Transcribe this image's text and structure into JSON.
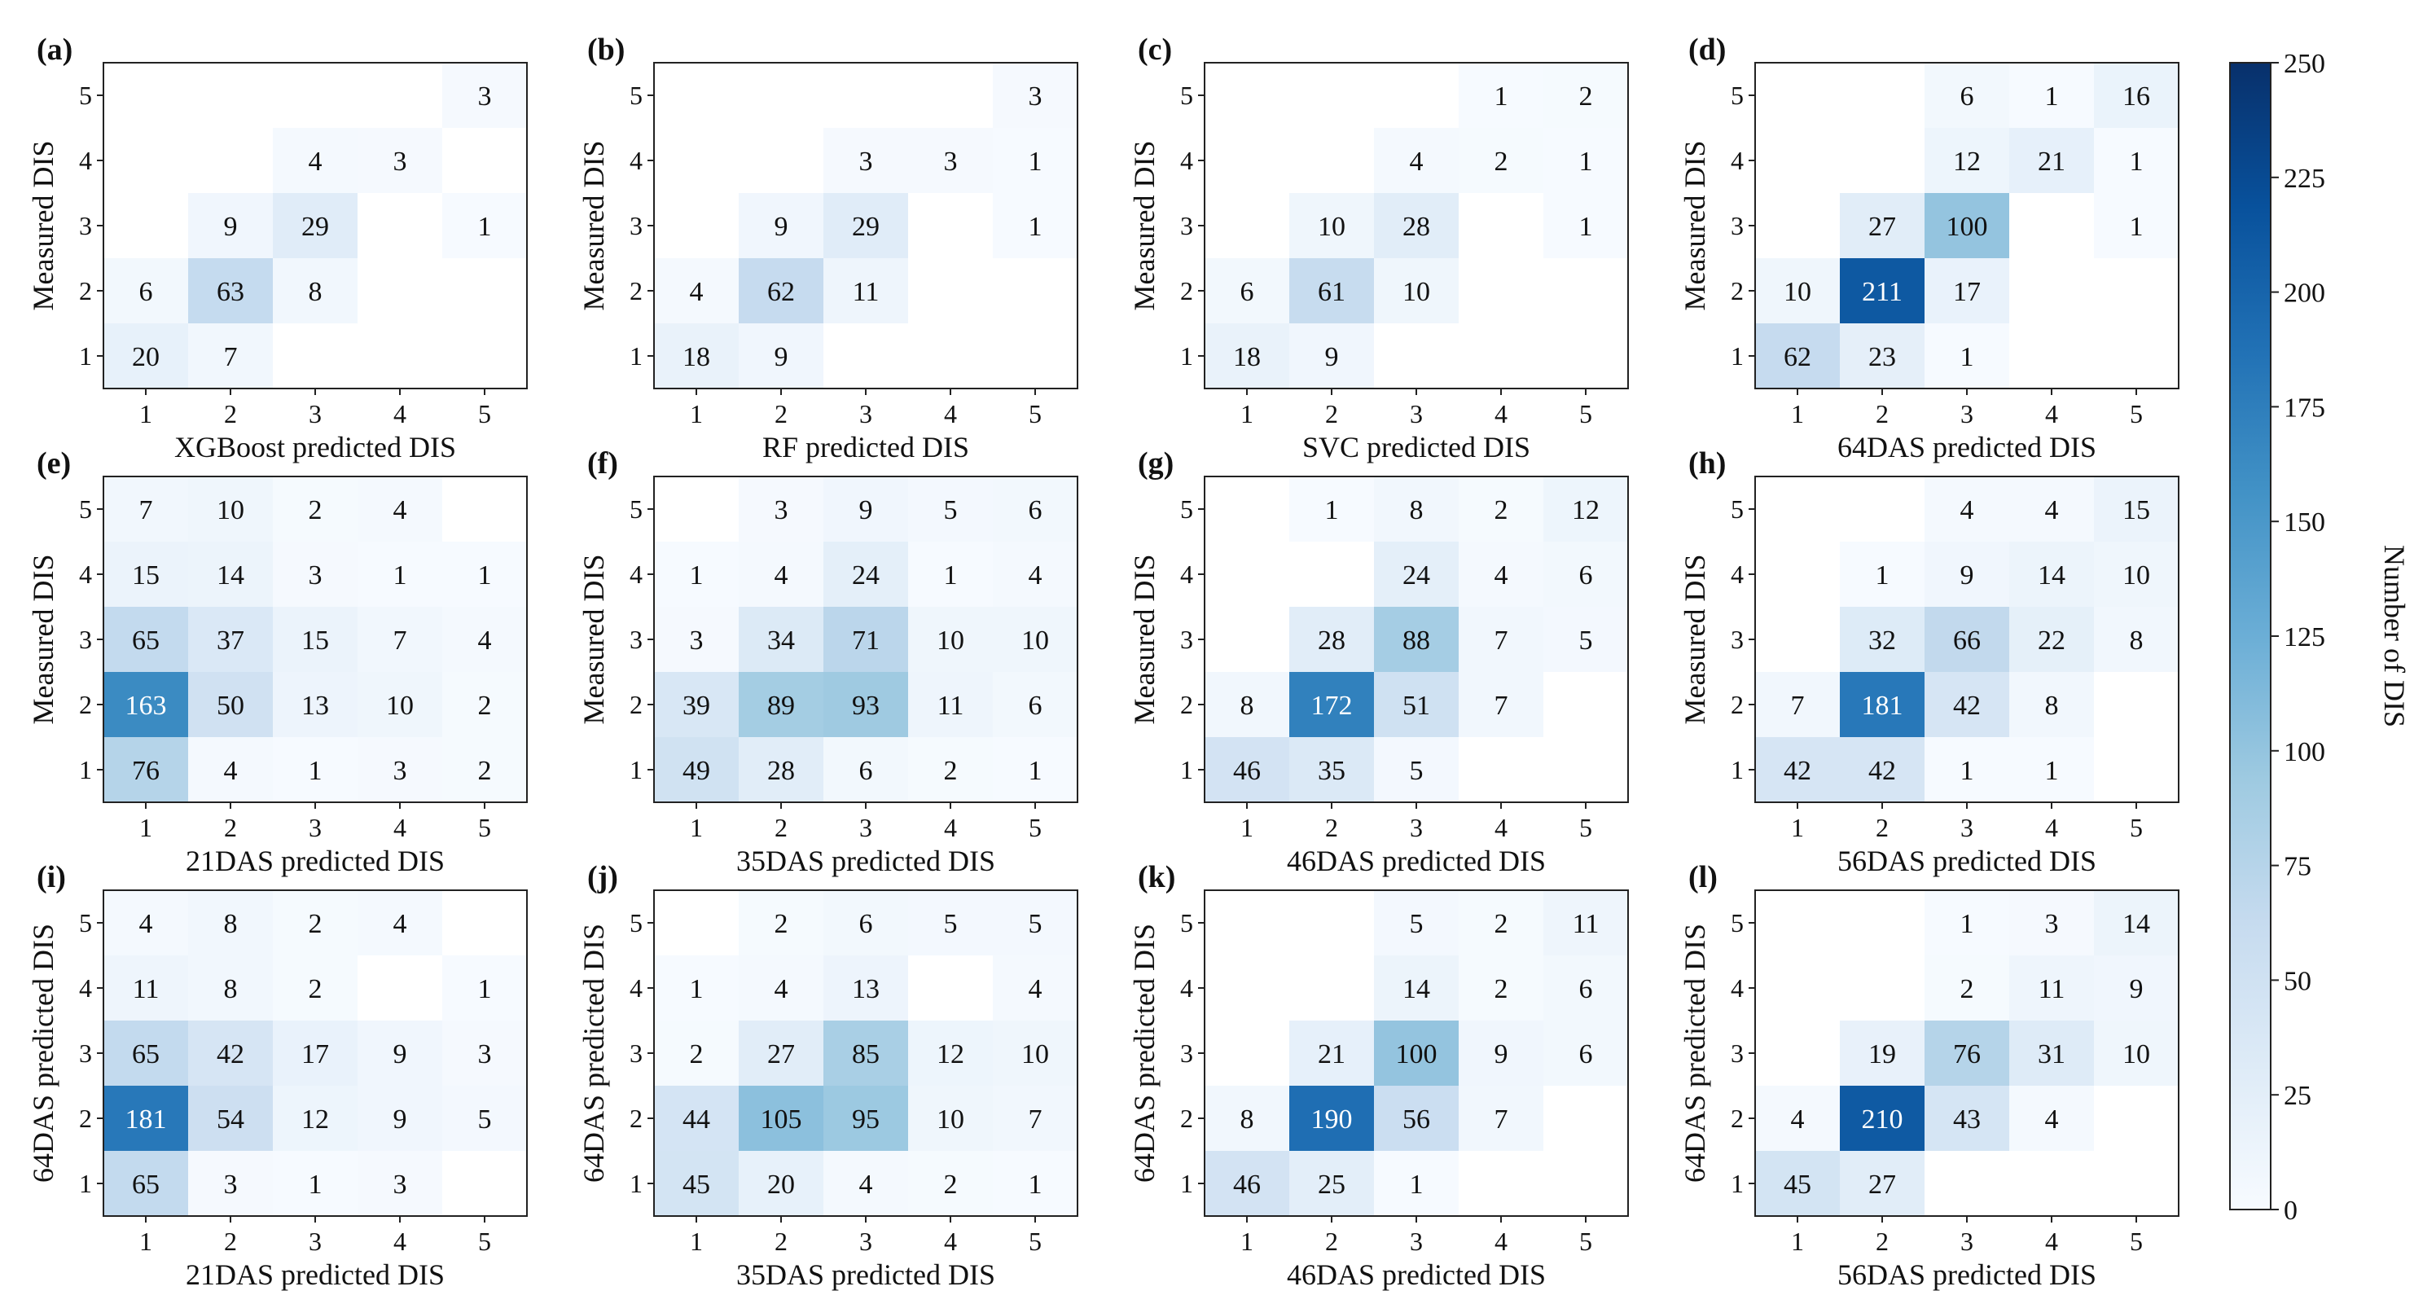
{
  "chart_data": {
    "type": "heatmap",
    "colormap": "Blues",
    "colorbar": {
      "label": "Number of DIS",
      "min": 0,
      "max": 250,
      "ticks": [
        "0",
        "25",
        "50",
        "75",
        "100",
        "125",
        "150",
        "175",
        "200",
        "225",
        "250"
      ]
    },
    "panels": [
      {
        "letter": "(a)",
        "xlabel": "XGBoost predicted DIS",
        "ylabel": "Measured DIS",
        "x_ticks": [
          "1",
          "2",
          "3",
          "4",
          "5"
        ],
        "y_ticks": [
          "5",
          "4",
          "3",
          "2",
          "1"
        ],
        "matrix": [
          [
            null,
            null,
            null,
            null,
            3
          ],
          [
            null,
            null,
            4,
            3,
            null
          ],
          [
            null,
            9,
            29,
            null,
            1
          ],
          [
            6,
            63,
            8,
            null,
            null
          ],
          [
            20,
            7,
            null,
            null,
            null
          ]
        ]
      },
      {
        "letter": "(b)",
        "xlabel": "RF predicted DIS",
        "ylabel": "Measured DIS",
        "x_ticks": [
          "1",
          "2",
          "3",
          "4",
          "5"
        ],
        "y_ticks": [
          "5",
          "4",
          "3",
          "2",
          "1"
        ],
        "matrix": [
          [
            null,
            null,
            null,
            null,
            3
          ],
          [
            null,
            null,
            3,
            3,
            1
          ],
          [
            null,
            9,
            29,
            null,
            1
          ],
          [
            4,
            62,
            11,
            null,
            null
          ],
          [
            18,
            9,
            null,
            null,
            null
          ]
        ]
      },
      {
        "letter": "(c)",
        "xlabel": "SVC predicted DIS",
        "ylabel": "Measured DIS",
        "x_ticks": [
          "1",
          "2",
          "3",
          "4",
          "5"
        ],
        "y_ticks": [
          "5",
          "4",
          "3",
          "2",
          "1"
        ],
        "matrix": [
          [
            null,
            null,
            null,
            1,
            2
          ],
          [
            null,
            null,
            4,
            2,
            1
          ],
          [
            null,
            10,
            28,
            null,
            1
          ],
          [
            6,
            61,
            10,
            null,
            null
          ],
          [
            18,
            9,
            null,
            null,
            null
          ]
        ]
      },
      {
        "letter": "(d)",
        "xlabel": "64DAS predicted DIS",
        "ylabel": "Measured DIS",
        "x_ticks": [
          "1",
          "2",
          "3",
          "4",
          "5"
        ],
        "y_ticks": [
          "5",
          "4",
          "3",
          "2",
          "1"
        ],
        "matrix": [
          [
            null,
            null,
            6,
            1,
            16
          ],
          [
            null,
            null,
            12,
            21,
            1
          ],
          [
            null,
            27,
            100,
            null,
            1
          ],
          [
            10,
            211,
            17,
            null,
            null
          ],
          [
            62,
            23,
            1,
            null,
            null
          ]
        ]
      },
      {
        "letter": "(e)",
        "xlabel": "21DAS predicted DIS",
        "ylabel": "Measured DIS",
        "x_ticks": [
          "1",
          "2",
          "3",
          "4",
          "5"
        ],
        "y_ticks": [
          "5",
          "4",
          "3",
          "2",
          "1"
        ],
        "matrix": [
          [
            7,
            10,
            2,
            4,
            null
          ],
          [
            15,
            14,
            3,
            1,
            1
          ],
          [
            65,
            37,
            15,
            7,
            4
          ],
          [
            163,
            50,
            13,
            10,
            2
          ],
          [
            76,
            4,
            1,
            3,
            2
          ]
        ]
      },
      {
        "letter": "(f)",
        "xlabel": "35DAS predicted DIS",
        "ylabel": "Measured DIS",
        "x_ticks": [
          "1",
          "2",
          "3",
          "4",
          "5"
        ],
        "y_ticks": [
          "5",
          "4",
          "3",
          "2",
          "1"
        ],
        "matrix": [
          [
            null,
            3,
            9,
            5,
            6
          ],
          [
            1,
            4,
            24,
            1,
            4
          ],
          [
            3,
            34,
            71,
            10,
            10
          ],
          [
            39,
            89,
            93,
            11,
            6
          ],
          [
            49,
            28,
            6,
            2,
            1
          ]
        ]
      },
      {
        "letter": "(g)",
        "xlabel": "46DAS predicted DIS",
        "ylabel": "Measured DIS",
        "x_ticks": [
          "1",
          "2",
          "3",
          "4",
          "5"
        ],
        "y_ticks": [
          "5",
          "4",
          "3",
          "2",
          "1"
        ],
        "matrix": [
          [
            null,
            1,
            8,
            2,
            12
          ],
          [
            null,
            null,
            24,
            4,
            6
          ],
          [
            null,
            28,
            88,
            7,
            5
          ],
          [
            8,
            172,
            51,
            7,
            null
          ],
          [
            46,
            35,
            5,
            null,
            null
          ]
        ]
      },
      {
        "letter": "(h)",
        "xlabel": "56DAS predicted DIS",
        "ylabel": "Measured DIS",
        "x_ticks": [
          "1",
          "2",
          "3",
          "4",
          "5"
        ],
        "y_ticks": [
          "5",
          "4",
          "3",
          "2",
          "1"
        ],
        "matrix": [
          [
            null,
            null,
            4,
            4,
            15
          ],
          [
            null,
            1,
            9,
            14,
            10
          ],
          [
            null,
            32,
            66,
            22,
            8
          ],
          [
            7,
            181,
            42,
            8,
            null
          ],
          [
            42,
            42,
            1,
            1,
            null
          ]
        ]
      },
      {
        "letter": "(i)",
        "xlabel": "21DAS predicted DIS",
        "ylabel": "64DAS predicted DIS",
        "x_ticks": [
          "1",
          "2",
          "3",
          "4",
          "5"
        ],
        "y_ticks": [
          "5",
          "4",
          "3",
          "2",
          "1"
        ],
        "matrix": [
          [
            4,
            8,
            2,
            4,
            null
          ],
          [
            11,
            8,
            2,
            null,
            1
          ],
          [
            65,
            42,
            17,
            9,
            3
          ],
          [
            181,
            54,
            12,
            9,
            5
          ],
          [
            65,
            3,
            1,
            3,
            null
          ]
        ]
      },
      {
        "letter": "(j)",
        "xlabel": "35DAS predicted DIS",
        "ylabel": "64DAS predicted DIS",
        "x_ticks": [
          "1",
          "2",
          "3",
          "4",
          "5"
        ],
        "y_ticks": [
          "5",
          "4",
          "3",
          "2",
          "1"
        ],
        "matrix": [
          [
            null,
            2,
            6,
            5,
            5
          ],
          [
            1,
            4,
            13,
            null,
            4
          ],
          [
            2,
            27,
            85,
            12,
            10
          ],
          [
            44,
            105,
            95,
            10,
            7
          ],
          [
            45,
            20,
            4,
            2,
            1
          ]
        ]
      },
      {
        "letter": "(k)",
        "xlabel": "46DAS predicted DIS",
        "ylabel": "64DAS predicted DIS",
        "x_ticks": [
          "1",
          "2",
          "3",
          "4",
          "5"
        ],
        "y_ticks": [
          "5",
          "4",
          "3",
          "2",
          "1"
        ],
        "matrix": [
          [
            null,
            null,
            5,
            2,
            11
          ],
          [
            null,
            null,
            14,
            2,
            6
          ],
          [
            null,
            21,
            100,
            9,
            6
          ],
          [
            8,
            190,
            56,
            7,
            null
          ],
          [
            46,
            25,
            1,
            null,
            null
          ]
        ]
      },
      {
        "letter": "(l)",
        "xlabel": "56DAS predicted DIS",
        "ylabel": "64DAS predicted DIS",
        "x_ticks": [
          "1",
          "2",
          "3",
          "4",
          "5"
        ],
        "y_ticks": [
          "5",
          "4",
          "3",
          "2",
          "1"
        ],
        "matrix": [
          [
            null,
            null,
            1,
            3,
            14
          ],
          [
            null,
            null,
            2,
            11,
            9
          ],
          [
            null,
            19,
            76,
            31,
            10
          ],
          [
            4,
            210,
            43,
            4,
            null
          ],
          [
            45,
            27,
            null,
            null,
            null
          ]
        ]
      }
    ]
  }
}
